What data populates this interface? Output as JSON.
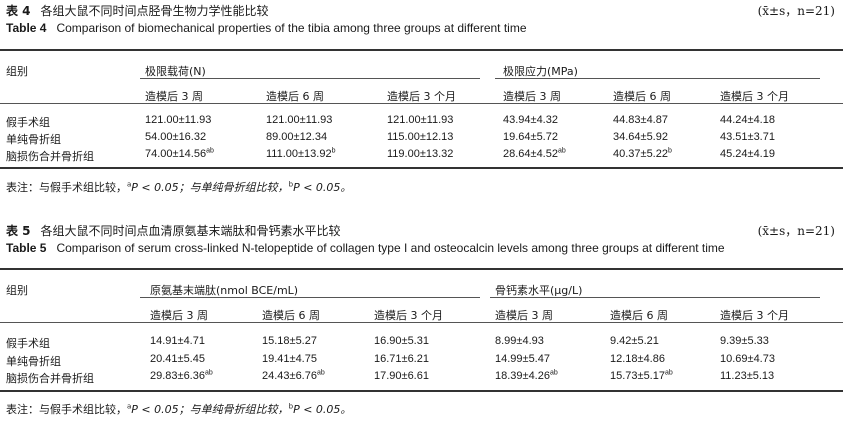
{
  "table4": {
    "label_cn": "表 4",
    "title_cn": "各组大鼠不同时间点胫骨生物力学性能比较",
    "stat": "(x̄±s，n=21)",
    "label_en": "Table 4",
    "title_en": "Comparison of biomechanical properties of the tibia among three groups at different time",
    "group_header": "组别",
    "col_group1": "极限载荷(N)",
    "col_group2": "极限应力(MPa)",
    "time_cols": [
      "造模后 3 周",
      "造模后 6 周",
      "造模后 3 个月",
      "造模后 3 周",
      "造模后 6 周",
      "造模后 3 个月"
    ],
    "rows": [
      {
        "group": "假手术组",
        "values": [
          [
            "121.00±11.93",
            ""
          ],
          [
            "121.00±11.93",
            ""
          ],
          [
            "121.00±11.93",
            ""
          ],
          [
            "43.94±4.32",
            ""
          ],
          [
            "44.83±4.87",
            ""
          ],
          [
            "44.24±4.18",
            ""
          ]
        ]
      },
      {
        "group": "单纯骨折组",
        "values": [
          [
            "54.00±16.32",
            ""
          ],
          [
            "89.00±12.34",
            ""
          ],
          [
            "115.00±12.13",
            ""
          ],
          [
            "19.64±5.72",
            ""
          ],
          [
            "34.64±5.92",
            ""
          ],
          [
            "43.51±3.71",
            ""
          ]
        ]
      },
      {
        "group": "脑损伤合并骨折组",
        "values": [
          [
            "74.00±14.56",
            "ab"
          ],
          [
            "111.00±13.92",
            "b"
          ],
          [
            "119.00±13.32",
            ""
          ],
          [
            "28.64±4.52",
            "ab"
          ],
          [
            "40.37±5.22",
            "b"
          ],
          [
            "45.24±4.19",
            ""
          ]
        ]
      }
    ],
    "note": {
      "prefix": "表注：与假手术组比较，",
      "a": "a",
      "p1": "P < 0.05；与单纯骨折组比较，",
      "b": "b",
      "p2": "P < 0.05。"
    }
  },
  "table5": {
    "label_cn": "表 5",
    "title_cn": "各组大鼠不同时间点血清原氨基末端肽和骨钙素水平比较",
    "stat": "(x̄±s，n=21)",
    "label_en": "Table 5",
    "title_en": "Comparison of serum cross-linked N-telopeptide of collagen type I and osteocalcin levels among three groups at different time",
    "group_header": "组别",
    "col_group1": "原氨基末端肽(nmol BCE/mL)",
    "col_group2": "骨钙素水平(μg/L)",
    "time_cols": [
      "造模后 3 周",
      "造模后 6 周",
      "造模后 3 个月",
      "造模后 3 周",
      "造模后 6 周",
      "造模后 3 个月"
    ],
    "rows": [
      {
        "group": "假手术组",
        "values": [
          [
            "14.91±4.71",
            ""
          ],
          [
            "15.18±5.27",
            ""
          ],
          [
            "16.90±5.31",
            ""
          ],
          [
            "8.99±4.93",
            ""
          ],
          [
            "9.42±5.21",
            ""
          ],
          [
            "9.39±5.33",
            ""
          ]
        ]
      },
      {
        "group": "单纯骨折组",
        "values": [
          [
            "20.41±5.45",
            ""
          ],
          [
            "19.41±4.75",
            ""
          ],
          [
            "16.71±6.21",
            ""
          ],
          [
            "14.99±5.47",
            ""
          ],
          [
            "12.18±4.86",
            ""
          ],
          [
            "10.69±4.73",
            ""
          ]
        ]
      },
      {
        "group": "脑损伤合并骨折组",
        "values": [
          [
            "29.83±6.36",
            "ab"
          ],
          [
            "24.43±6.76",
            "ab"
          ],
          [
            "17.90±6.61",
            ""
          ],
          [
            "18.39±4.26",
            "ab"
          ],
          [
            "15.73±5.17",
            "ab"
          ],
          [
            "11.23±5.13",
            ""
          ]
        ]
      }
    ],
    "note": {
      "prefix": "表注：与假手术组比较，",
      "a": "a",
      "p1": "P < 0.05；与单纯骨折组比较，",
      "b": "b",
      "p2": "P < 0.05。"
    }
  }
}
